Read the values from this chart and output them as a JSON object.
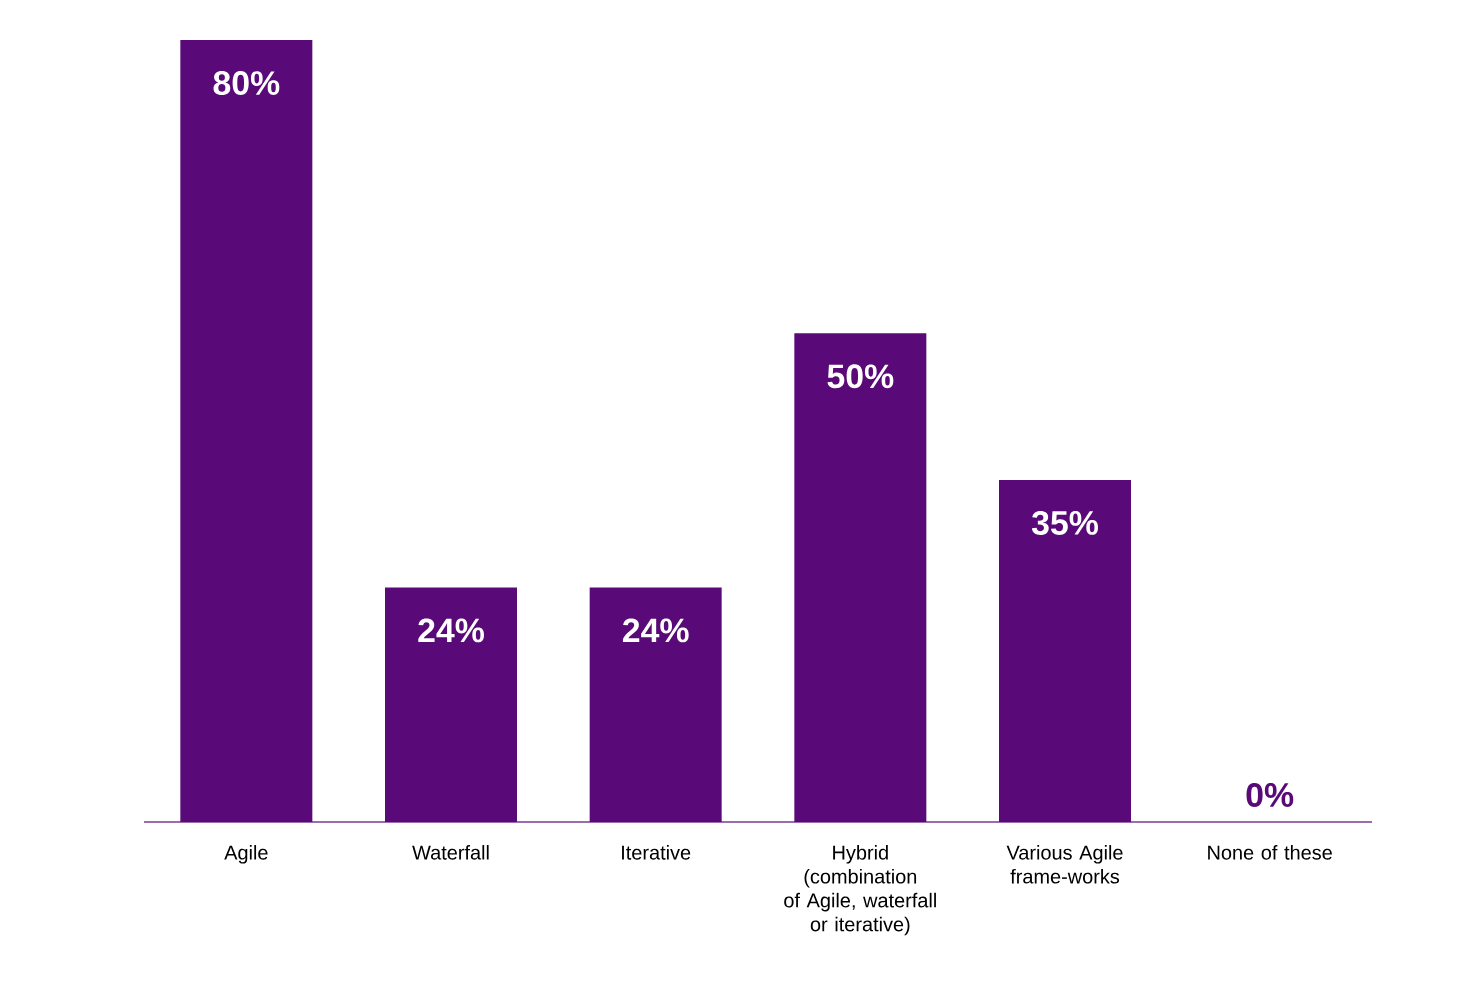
{
  "chart_data": {
    "type": "bar",
    "categories": [
      "Agile",
      "Waterfall",
      "Iterative",
      "Hybrid (combination of Agile, waterfall or iterative)",
      "Various Agile frame-works",
      "None of these"
    ],
    "values": [
      80,
      24,
      24,
      50,
      35,
      0
    ],
    "value_labels": [
      "80%",
      "24%",
      "24%",
      "50%",
      "35%",
      "0%"
    ],
    "color": "#5a0a78"
  }
}
